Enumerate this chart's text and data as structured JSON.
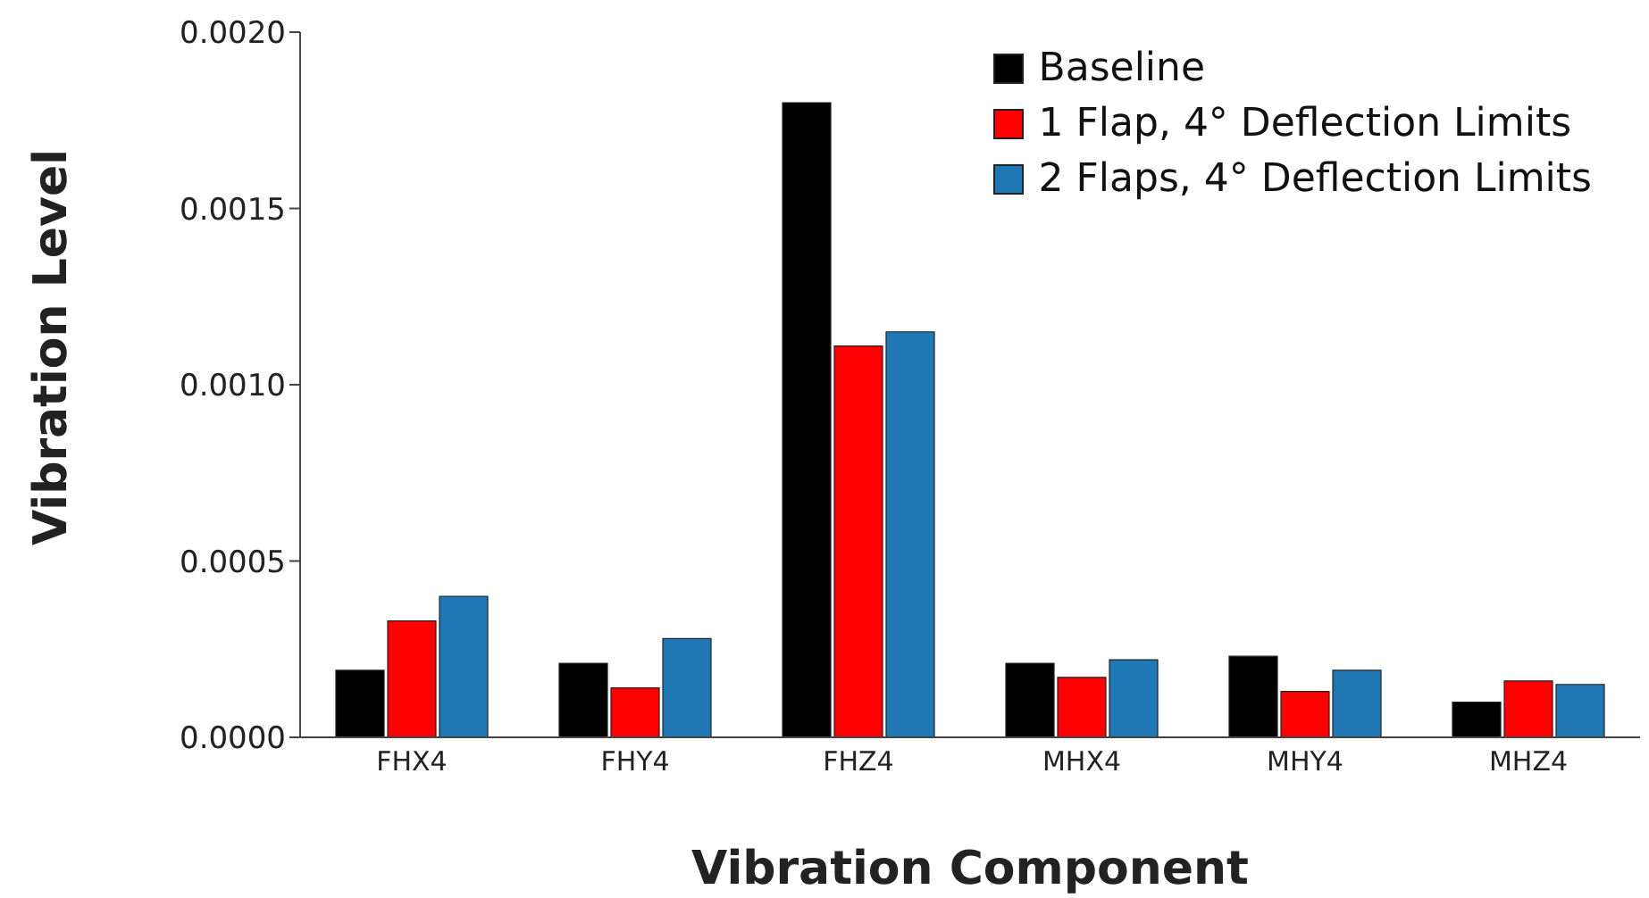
{
  "chart_data": {
    "type": "bar",
    "xlabel": "Vibration Component",
    "ylabel": "Vibration Level",
    "categories": [
      "FHX4",
      "FHY4",
      "FHZ4",
      "MHX4",
      "MHY4",
      "MHZ4"
    ],
    "series": [
      {
        "name": "Baseline",
        "color": "#000000",
        "values": [
          0.00019,
          0.00021,
          0.0018,
          0.00021,
          0.00023,
          0.0001
        ]
      },
      {
        "name": "1 Flap, 4° Deflection Limits",
        "color": "#ff0000",
        "values": [
          0.00033,
          0.00014,
          0.00111,
          0.00017,
          0.00013,
          0.00016
        ]
      },
      {
        "name": "2 Flaps, 4° Deflection Limits",
        "color": "#1f78b4",
        "values": [
          0.0004,
          0.00028,
          0.00115,
          0.00022,
          0.00019,
          0.00015
        ]
      }
    ],
    "ylim": [
      0,
      0.002
    ],
    "yticks": [
      {
        "value": 0,
        "label": "0.0000"
      },
      {
        "value": 0.0005,
        "label": "0.0005"
      },
      {
        "value": 0.001,
        "label": "0.0010"
      },
      {
        "value": 0.0015,
        "label": "0.0015"
      },
      {
        "value": 0.002,
        "label": "0.0020"
      }
    ],
    "grid": false,
    "legend": "top right"
  }
}
